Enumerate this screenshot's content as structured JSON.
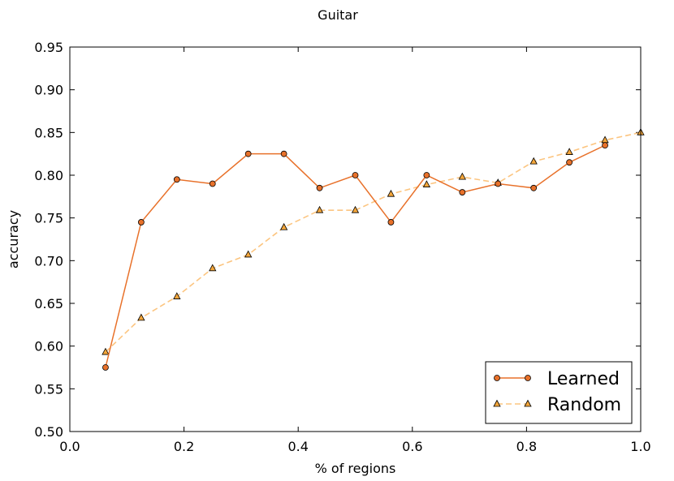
{
  "chart_data": {
    "type": "line",
    "title": "Guitar",
    "xlabel": "% of regions",
    "ylabel": "accuracy",
    "xlim": [
      0.0,
      1.0
    ],
    "ylim": [
      0.5,
      0.95
    ],
    "xticks": [
      "0.0",
      "0.2",
      "0.4",
      "0.6",
      "0.8",
      "1.0"
    ],
    "yticks": [
      "0.50",
      "0.55",
      "0.60",
      "0.65",
      "0.70",
      "0.75",
      "0.80",
      "0.85",
      "0.90",
      "0.95"
    ],
    "grid": false,
    "legend_position": "bottom-right",
    "series": [
      {
        "name": "Learned",
        "color": "#e8712a",
        "line_style": "solid",
        "marker": "circle",
        "x": [
          0.0625,
          0.125,
          0.1875,
          0.25,
          0.3125,
          0.375,
          0.4375,
          0.5,
          0.5625,
          0.625,
          0.6875,
          0.75,
          0.8125,
          0.875,
          0.9375
        ],
        "y": [
          0.575,
          0.745,
          0.795,
          0.79,
          0.825,
          0.825,
          0.785,
          0.8,
          0.745,
          0.8,
          0.78,
          0.79,
          0.785,
          0.815,
          0.835
        ]
      },
      {
        "name": "Random",
        "color": "#fcc580",
        "marker_fill": "#f4a63a",
        "line_style": "dashed",
        "marker": "triangle",
        "x": [
          0.0625,
          0.125,
          0.1875,
          0.25,
          0.3125,
          0.375,
          0.4375,
          0.5,
          0.5625,
          0.625,
          0.6875,
          0.75,
          0.8125,
          0.875,
          0.9375,
          1.0
        ],
        "y": [
          0.593,
          0.633,
          0.658,
          0.691,
          0.707,
          0.739,
          0.759,
          0.759,
          0.778,
          0.789,
          0.798,
          0.791,
          0.816,
          0.827,
          0.841,
          0.85
        ]
      }
    ]
  }
}
